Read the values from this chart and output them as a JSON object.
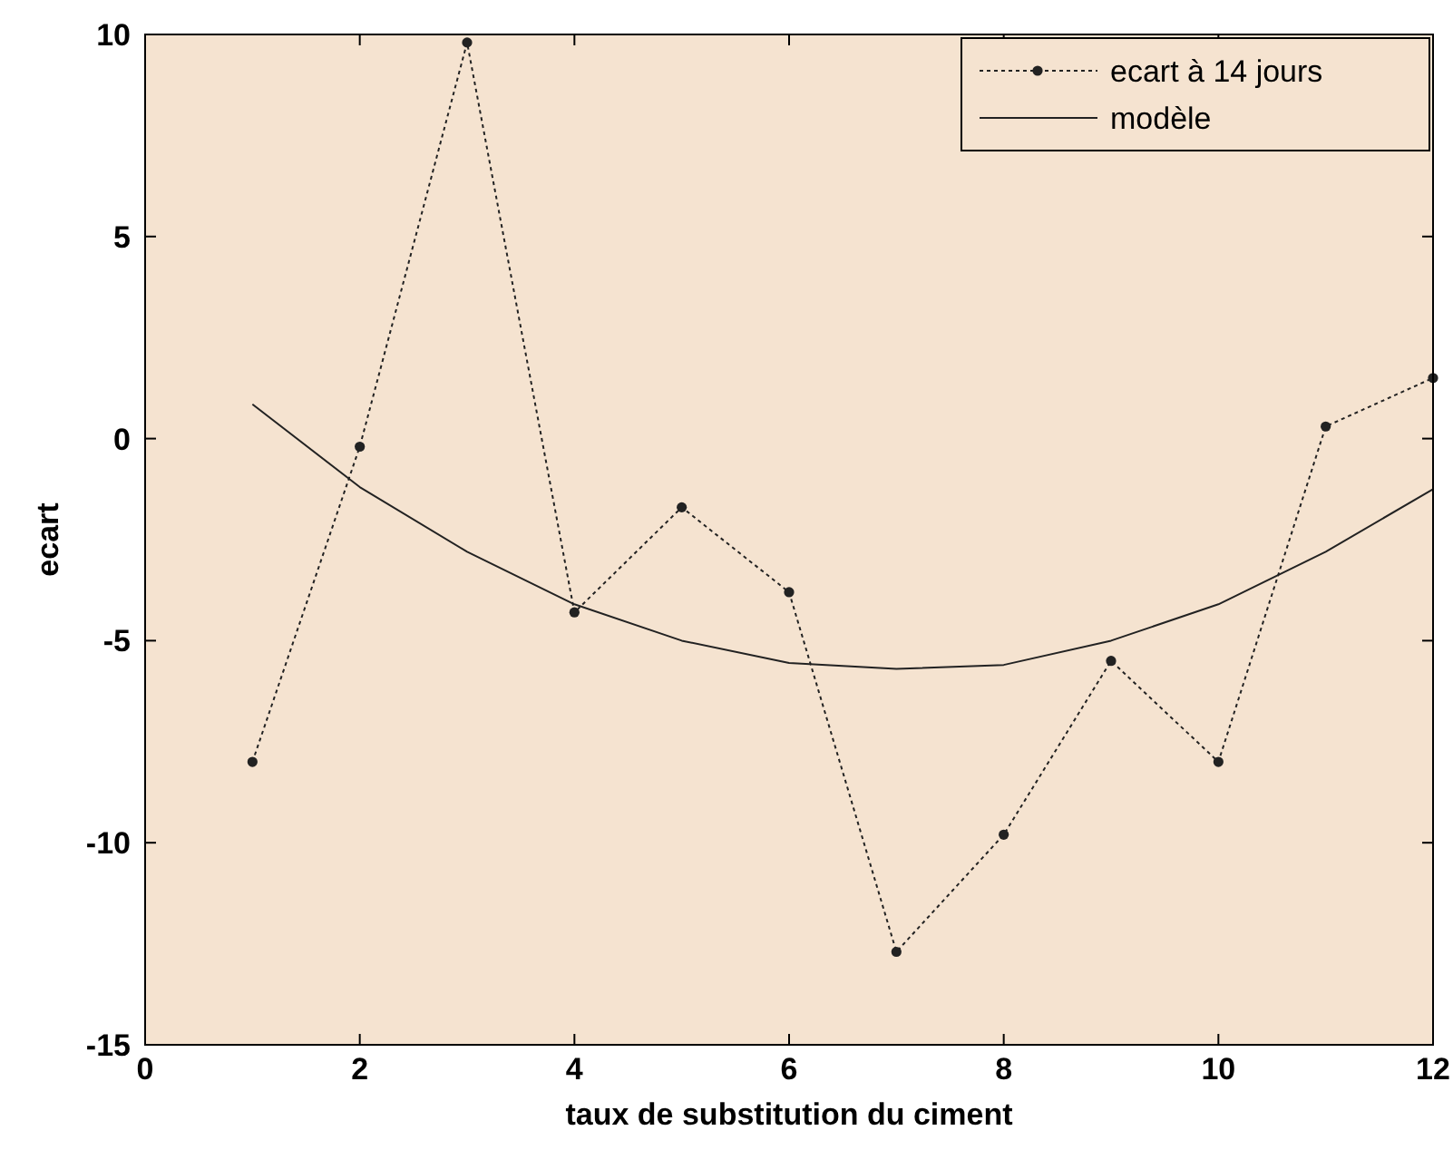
{
  "chart_data": {
    "type": "line",
    "xlabel": "taux de substitution du ciment",
    "ylabel": "ecart",
    "x": [
      1,
      2,
      3,
      4,
      5,
      6,
      7,
      8,
      9,
      10,
      11,
      12
    ],
    "xlim": [
      0,
      12
    ],
    "ylim": [
      -15,
      10
    ],
    "xticks": [
      0,
      2,
      4,
      6,
      8,
      10,
      12
    ],
    "yticks": [
      -15,
      -10,
      -5,
      0,
      5,
      10
    ],
    "grid": false,
    "legend": "top right",
    "series": [
      {
        "name": "ecart à 14 jours",
        "color": "#222222",
        "marker": "circle",
        "line_style": "dotted",
        "values": [
          -8.0,
          -0.2,
          9.8,
          -4.3,
          -1.7,
          -3.8,
          -12.7,
          -9.8,
          -5.5,
          -8.0,
          0.3,
          1.5
        ]
      },
      {
        "name": "modèle",
        "color": "#222222",
        "marker": "none",
        "line_style": "solid",
        "values": [
          0.85,
          -1.2,
          -2.8,
          -4.1,
          -5.0,
          -5.55,
          -5.7,
          -5.6,
          -5.0,
          -4.1,
          -2.8,
          -1.25
        ]
      }
    ]
  }
}
